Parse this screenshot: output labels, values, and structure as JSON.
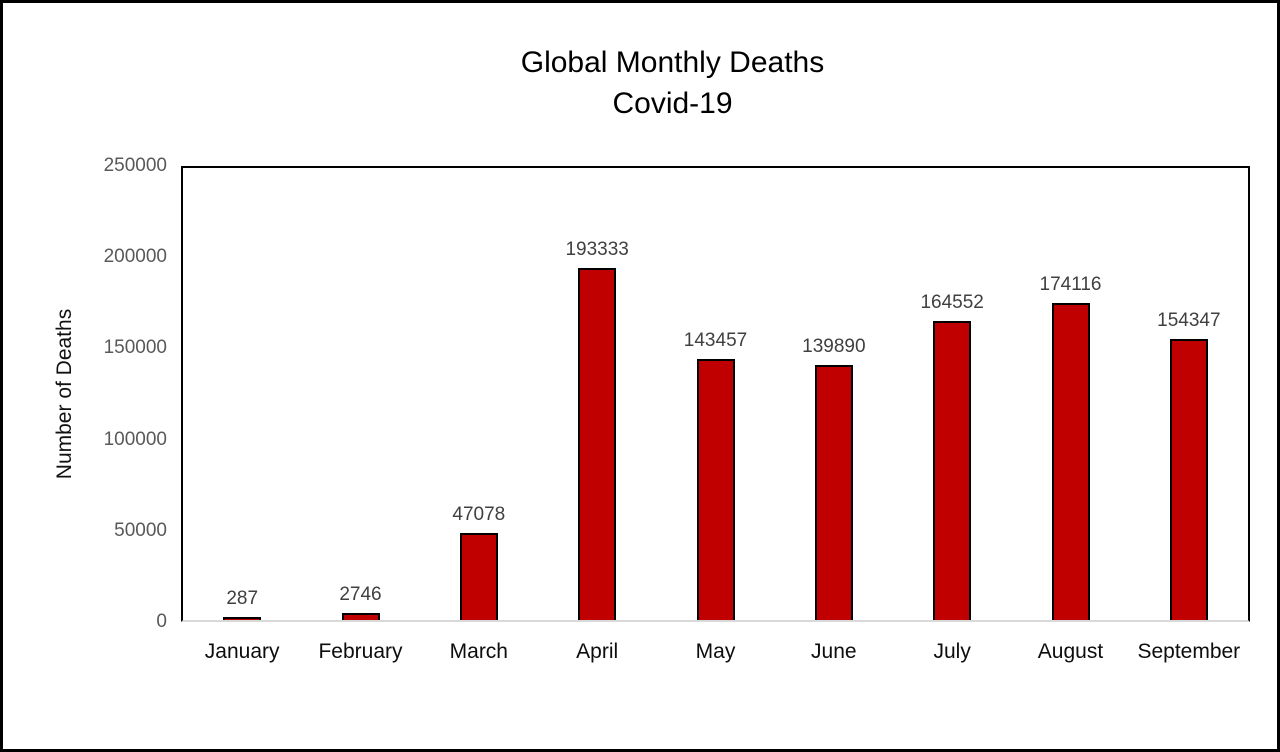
{
  "title": {
    "line1": "Global Monthly Deaths",
    "line2": "Covid-19"
  },
  "chart_data": {
    "type": "bar",
    "title": "Global Monthly Deaths Covid-19",
    "title_lines": [
      "Global Monthly Deaths",
      "Covid-19"
    ],
    "categories": [
      "January",
      "February",
      "March",
      "April",
      "May",
      "June",
      "July",
      "August",
      "September"
    ],
    "values": [
      287,
      2746,
      47078,
      193333,
      143457,
      139890,
      164552,
      174116,
      154347
    ],
    "data_labels": [
      "287",
      "2746",
      "47078",
      "193333",
      "143457",
      "139890",
      "164552",
      "174116",
      "154347"
    ],
    "xlabel": "",
    "ylabel": "Number of Deaths",
    "ylim": [
      0,
      250000
    ],
    "yticks": [
      0,
      50000,
      100000,
      150000,
      200000,
      250000
    ],
    "grid": false,
    "legend": "none",
    "bar_color": "#C00000",
    "bar_border_color": "#000000",
    "y_tick_label_color": "#595959",
    "data_label_color": "#404040",
    "background_color": "#ffffff"
  }
}
